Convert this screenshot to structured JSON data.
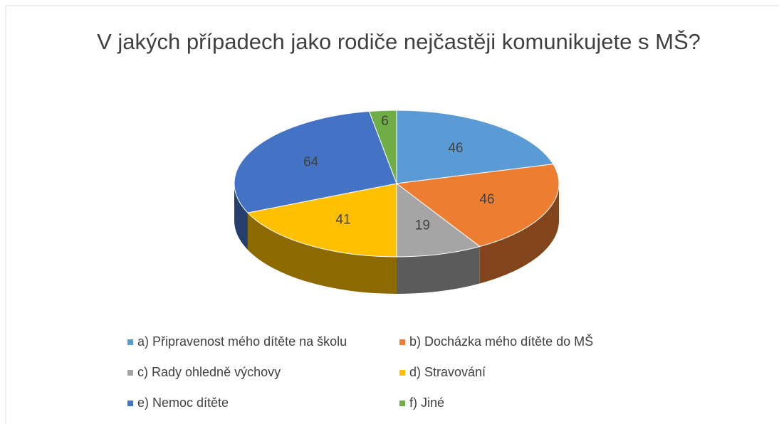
{
  "chart_data": {
    "type": "pie3d",
    "title": "V jakých případech jako rodiče nejčastěji komunikujete s MŠ?",
    "categories": [
      "a) Připravenost mého dítěte na školu",
      "b) Docházka mého dítěte do MŠ",
      "c) Rady ohledně výchovy",
      "d) Stravování",
      "e) Nemoc dítěte",
      "f) Jiné"
    ],
    "values": [
      46,
      46,
      19,
      41,
      64,
      6
    ],
    "colors": [
      "#5b9bd5",
      "#ed7d31",
      "#a5a5a5",
      "#ffc000",
      "#4472c4",
      "#70ad47"
    ],
    "legend": "bottom"
  }
}
